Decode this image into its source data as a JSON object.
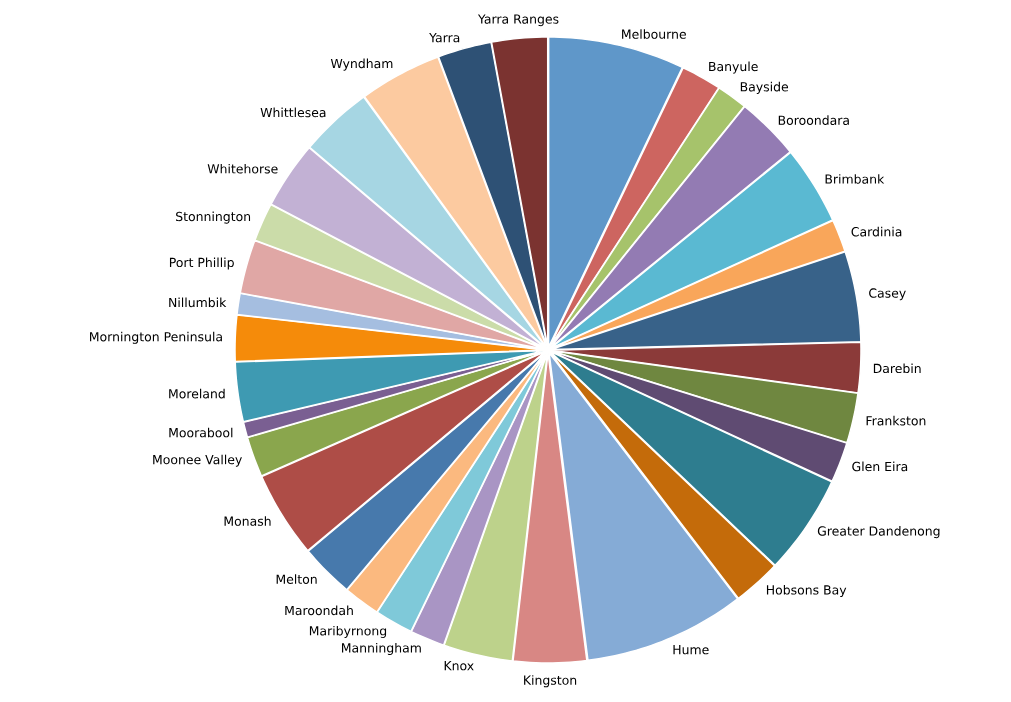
{
  "chart_data": {
    "type": "pie",
    "categories": [
      "Melbourne",
      "Banyule",
      "Bayside",
      "Boroondara",
      "Brimbank",
      "Cardinia",
      "Casey",
      "Darebin",
      "Frankston",
      "Glen Eira",
      "Greater Dandenong",
      "Hobsons Bay",
      "Hume",
      "Kingston",
      "Knox",
      "Manningham",
      "Maribyrnong",
      "Maroondah",
      "Melton",
      "Monash",
      "Moonee Valley",
      "Moorabool",
      "Moreland",
      "Mornington Peninsula",
      "Nillumbik",
      "Port Phillip",
      "Stonnington",
      "Whitehorse",
      "Whittlesea",
      "Wyndham",
      "Yarra",
      "Yarra Ranges"
    ],
    "values": [
      7.1,
      2.1,
      1.6,
      3.3,
      4.1,
      1.7,
      4.7,
      2.6,
      2.6,
      2.1,
      5.2,
      2.5,
      8.4,
      3.8,
      3.6,
      1.8,
      2.0,
      1.9,
      2.8,
      4.5,
      2.1,
      0.8,
      3.1,
      2.4,
      1.1,
      2.8,
      2.0,
      3.5,
      3.8,
      4.3,
      2.8,
      2.9
    ],
    "colors": [
      "#5f97c9",
      "#cd6560",
      "#a6c36b",
      "#937bb3",
      "#5ab9d2",
      "#f9a65a",
      "#386289",
      "#8b3a39",
      "#6f8740",
      "#5f4b72",
      "#2e7d8f",
      "#c46b0a",
      "#85abd6",
      "#d88784",
      "#bdd28b",
      "#a995c4",
      "#7fc9d9",
      "#fbb97f",
      "#4779ac",
      "#ae4d47",
      "#8aa64d",
      "#7a5f92",
      "#3e9ab2",
      "#f58b0a",
      "#a5bee0",
      "#e0a7a5",
      "#cbdca9",
      "#c2b1d4",
      "#a6d6e3",
      "#fccaa0",
      "#2e5175",
      "#7b3330"
    ]
  }
}
